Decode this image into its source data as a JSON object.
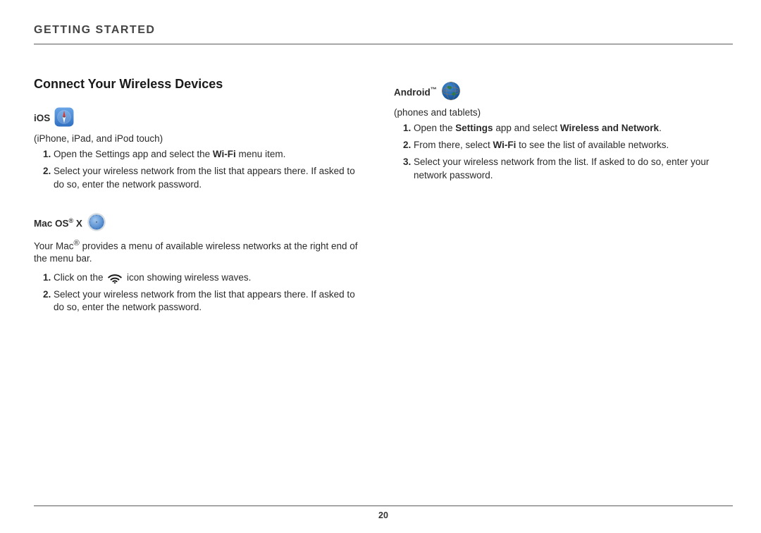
{
  "header": {
    "title": "GETTING STARTED"
  },
  "section_title": "Connect Your Wireless Devices",
  "page_number": "20",
  "rule_color": "#5a5a5a",
  "text_color": "#2b2b2b",
  "background_color": "#ffffff",
  "left": {
    "ios": {
      "label": "iOS",
      "icon": {
        "name": "compass-icon",
        "bg_top": "#6aa5e6",
        "bg_bottom": "#2f6fc2",
        "size": 28,
        "radius": 6,
        "needle_red": "#d93a2b",
        "needle_white": "#f4f6f9"
      },
      "subtitle": "(iPhone, iPad, and iPod touch)",
      "steps": [
        {
          "pre": "Open the Settings app and select the ",
          "bold": "Wi-Fi",
          "post": " menu item."
        },
        {
          "text": "Select your wireless network from the list that appears there. If asked to do so, enter the network password."
        }
      ]
    },
    "macos": {
      "label_pre": "Mac OS",
      "label_sup": "®",
      "label_post": " X",
      "icon": {
        "name": "safari-compass-icon",
        "outer": "#d8dde2",
        "inner_top": "#9fc6ef",
        "inner_bottom": "#3a78c4",
        "size": 28,
        "needle_red": "#d93a2b",
        "needle_white": "#f4f6f9",
        "tick": "#3b3b3b"
      },
      "intro_pre": "Your Mac",
      "intro_sup": "®",
      "intro_post": " provides a menu of available wireless networks at the right end of the menu bar.",
      "steps": [
        {
          "pre": "Click on the ",
          "icon": {
            "type": "wifi",
            "stroke": "#1a1a1a",
            "size": 22
          },
          "post": " icon showing wireless waves."
        },
        {
          "text": "Select your wireless network from the list that appears there. If asked to do so, enter the network password."
        }
      ]
    }
  },
  "right": {
    "android": {
      "label": "Android",
      "label_sup": "™",
      "icon": {
        "name": "globe-icon",
        "top": "#3e8ad8",
        "bottom": "#0d4a8f",
        "size": 28,
        "grid": "#be7a2e",
        "land": "#2f7a3a"
      },
      "subtitle": "(phones and tablets)",
      "steps": [
        {
          "pre": "Open the ",
          "bold": "Settings",
          "mid": " app and select ",
          "bold2": "Wireless and Network",
          "post": "."
        },
        {
          "pre": "From there, select ",
          "bold": "Wi-Fi",
          "post": " to see the list of available networks."
        },
        {
          "text": "Select your wireless network from the list. If asked to do so, enter your network password."
        }
      ]
    }
  }
}
